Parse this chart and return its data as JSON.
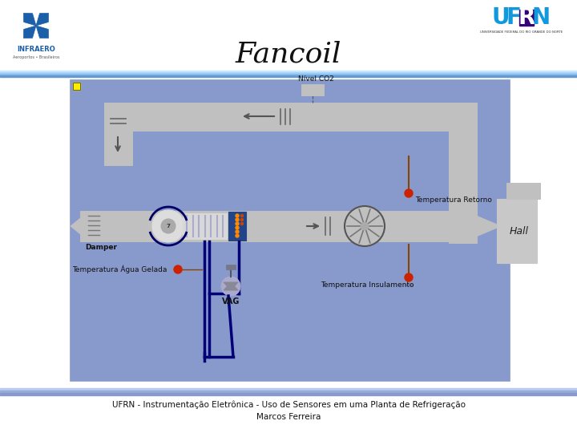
{
  "title": "Fancoil",
  "subtitle_line1": "UFRN - Instrumentação Eletrônica - Uso de Sensores em uma Planta de Refrigeração",
  "subtitle_line2": "Marcos Ferreira",
  "bg_color": "#ffffff",
  "diagram_bg": "#8899cc",
  "duct_color": "#c0c0c0",
  "duct_edge": "#888888",
  "label_nivel_co2": "Nível CO2",
  "label_temp_retorno": "Temperatura Retorno",
  "label_temp_insulamento": "Temperatura Insulamento",
  "label_temp_agua": "Temperatura Água Gelada",
  "label_damper": "Damper",
  "label_hall": "Hall",
  "label_vag": "VAG",
  "title_fontsize": 26,
  "label_fontsize": 6.5,
  "infraero_color": "#1a5fa8",
  "ufrn_blue": "#1199dd",
  "ufrn_purple": "#330077"
}
